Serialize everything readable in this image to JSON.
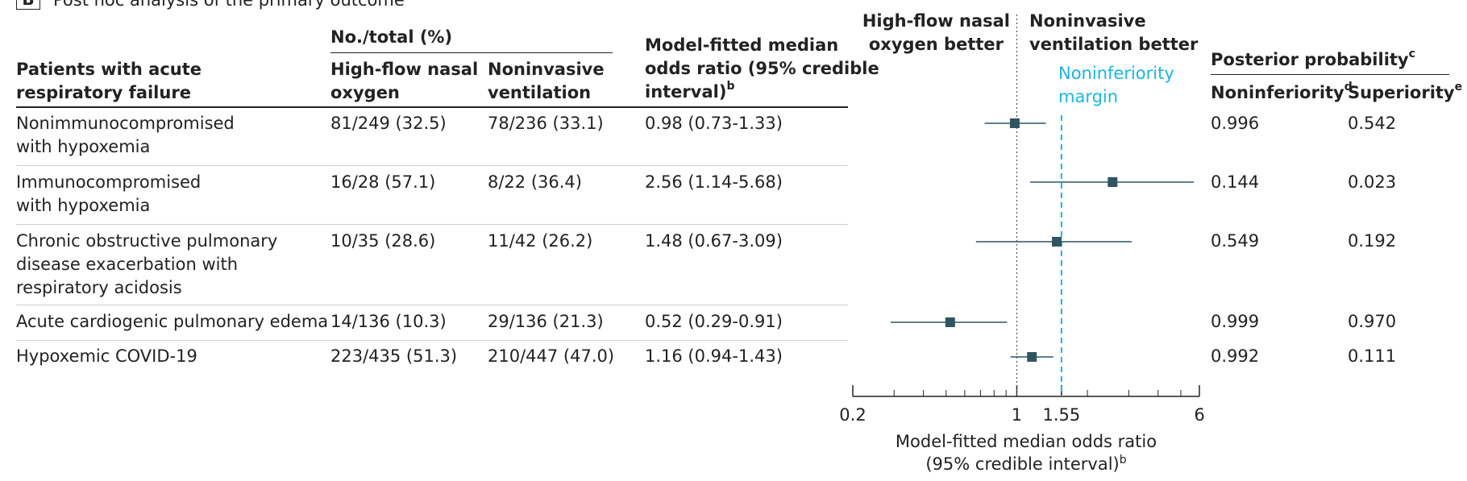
{
  "panel": {
    "letter": "B",
    "title": "Post hoc analysis of the primary outcome"
  },
  "headers": {
    "group_label_1": "Patients with acute",
    "group_label_2": "respiratory failure",
    "count_header": "No./total (%)",
    "hfno_1": "High-flow nasal",
    "hfno_2": "oxygen",
    "niv_1": "Noninvasive",
    "niv_2": "ventilation",
    "or_1": "Model-fitted median",
    "or_2": "odds ratio (95% credible",
    "or_3": "interval)",
    "or_sup": "b",
    "posterior": "Posterior probability",
    "posterior_sup": "c",
    "noninferiority": "Noninferiority",
    "noninferiority_sup": "d",
    "superiority": "Superiority",
    "superiority_sup": "e"
  },
  "rows": [
    {
      "group": "Nonimmunocompromised\nwith hypoxemia",
      "hfno": "81/249 (32.5)",
      "niv": "78/236 (33.1)",
      "or": "0.98 (0.73-1.33)",
      "noninf": "0.996",
      "sup": "0.542"
    },
    {
      "group": "Immunocompromised\nwith hypoxemia",
      "hfno": "16/28 (57.1)",
      "niv": "8/22 (36.4)",
      "or": "2.56 (1.14-5.68)",
      "noninf": "0.144",
      "sup": "0.023"
    },
    {
      "group": "Chronic obstructive pulmonary\ndisease exacerbation with\nrespiratory acidosis",
      "hfno": "10/35 (28.6)",
      "niv": "11/42 (26.2)",
      "or": "1.48 (0.67-3.09)",
      "noninf": "0.549",
      "sup": "0.192"
    },
    {
      "group": "Acute cardiogenic pulmonary edema",
      "hfno": "14/136 (10.3)",
      "niv": "29/136 (21.3)",
      "or": "0.52 (0.29-0.91)",
      "noninf": "0.999",
      "sup": "0.970"
    },
    {
      "group": "Hypoxemic COVID-19",
      "hfno": "223/435 (51.3)",
      "niv": "210/447 (47.0)",
      "or": "1.16 (0.94-1.43)",
      "noninf": "0.992",
      "sup": "0.111"
    }
  ],
  "chart_data": {
    "type": "scatter",
    "scale": "log",
    "xlim": [
      0.2,
      6
    ],
    "x_ticks": [
      0.2,
      1,
      1.55,
      6
    ],
    "x_tick_labels": [
      "0.2",
      "1",
      "1.55",
      "6"
    ],
    "reference_line": 1,
    "noninferiority_margin": 1.55,
    "margin_label_1": "Noninferiority",
    "margin_label_2": "margin",
    "left_label_1": "High-flow nasal",
    "left_label_2": "oxygen better",
    "right_label_1": "Noninvasive",
    "right_label_2": "ventilation better",
    "xlabel_1": "Model-fitted median odds ratio",
    "xlabel_2": "(95% credible interval)",
    "xlabel_sup": "b",
    "points": [
      {
        "estimate": 0.98,
        "lower": 0.73,
        "upper": 1.33
      },
      {
        "estimate": 2.56,
        "lower": 1.14,
        "upper": 5.68
      },
      {
        "estimate": 1.48,
        "lower": 0.67,
        "upper": 3.09
      },
      {
        "estimate": 0.52,
        "lower": 0.29,
        "upper": 0.91
      },
      {
        "estimate": 1.16,
        "lower": 0.94,
        "upper": 1.43
      }
    ],
    "colors": {
      "marker": "#2f5660",
      "margin": "#19b6e0",
      "axis": "#222222"
    }
  }
}
